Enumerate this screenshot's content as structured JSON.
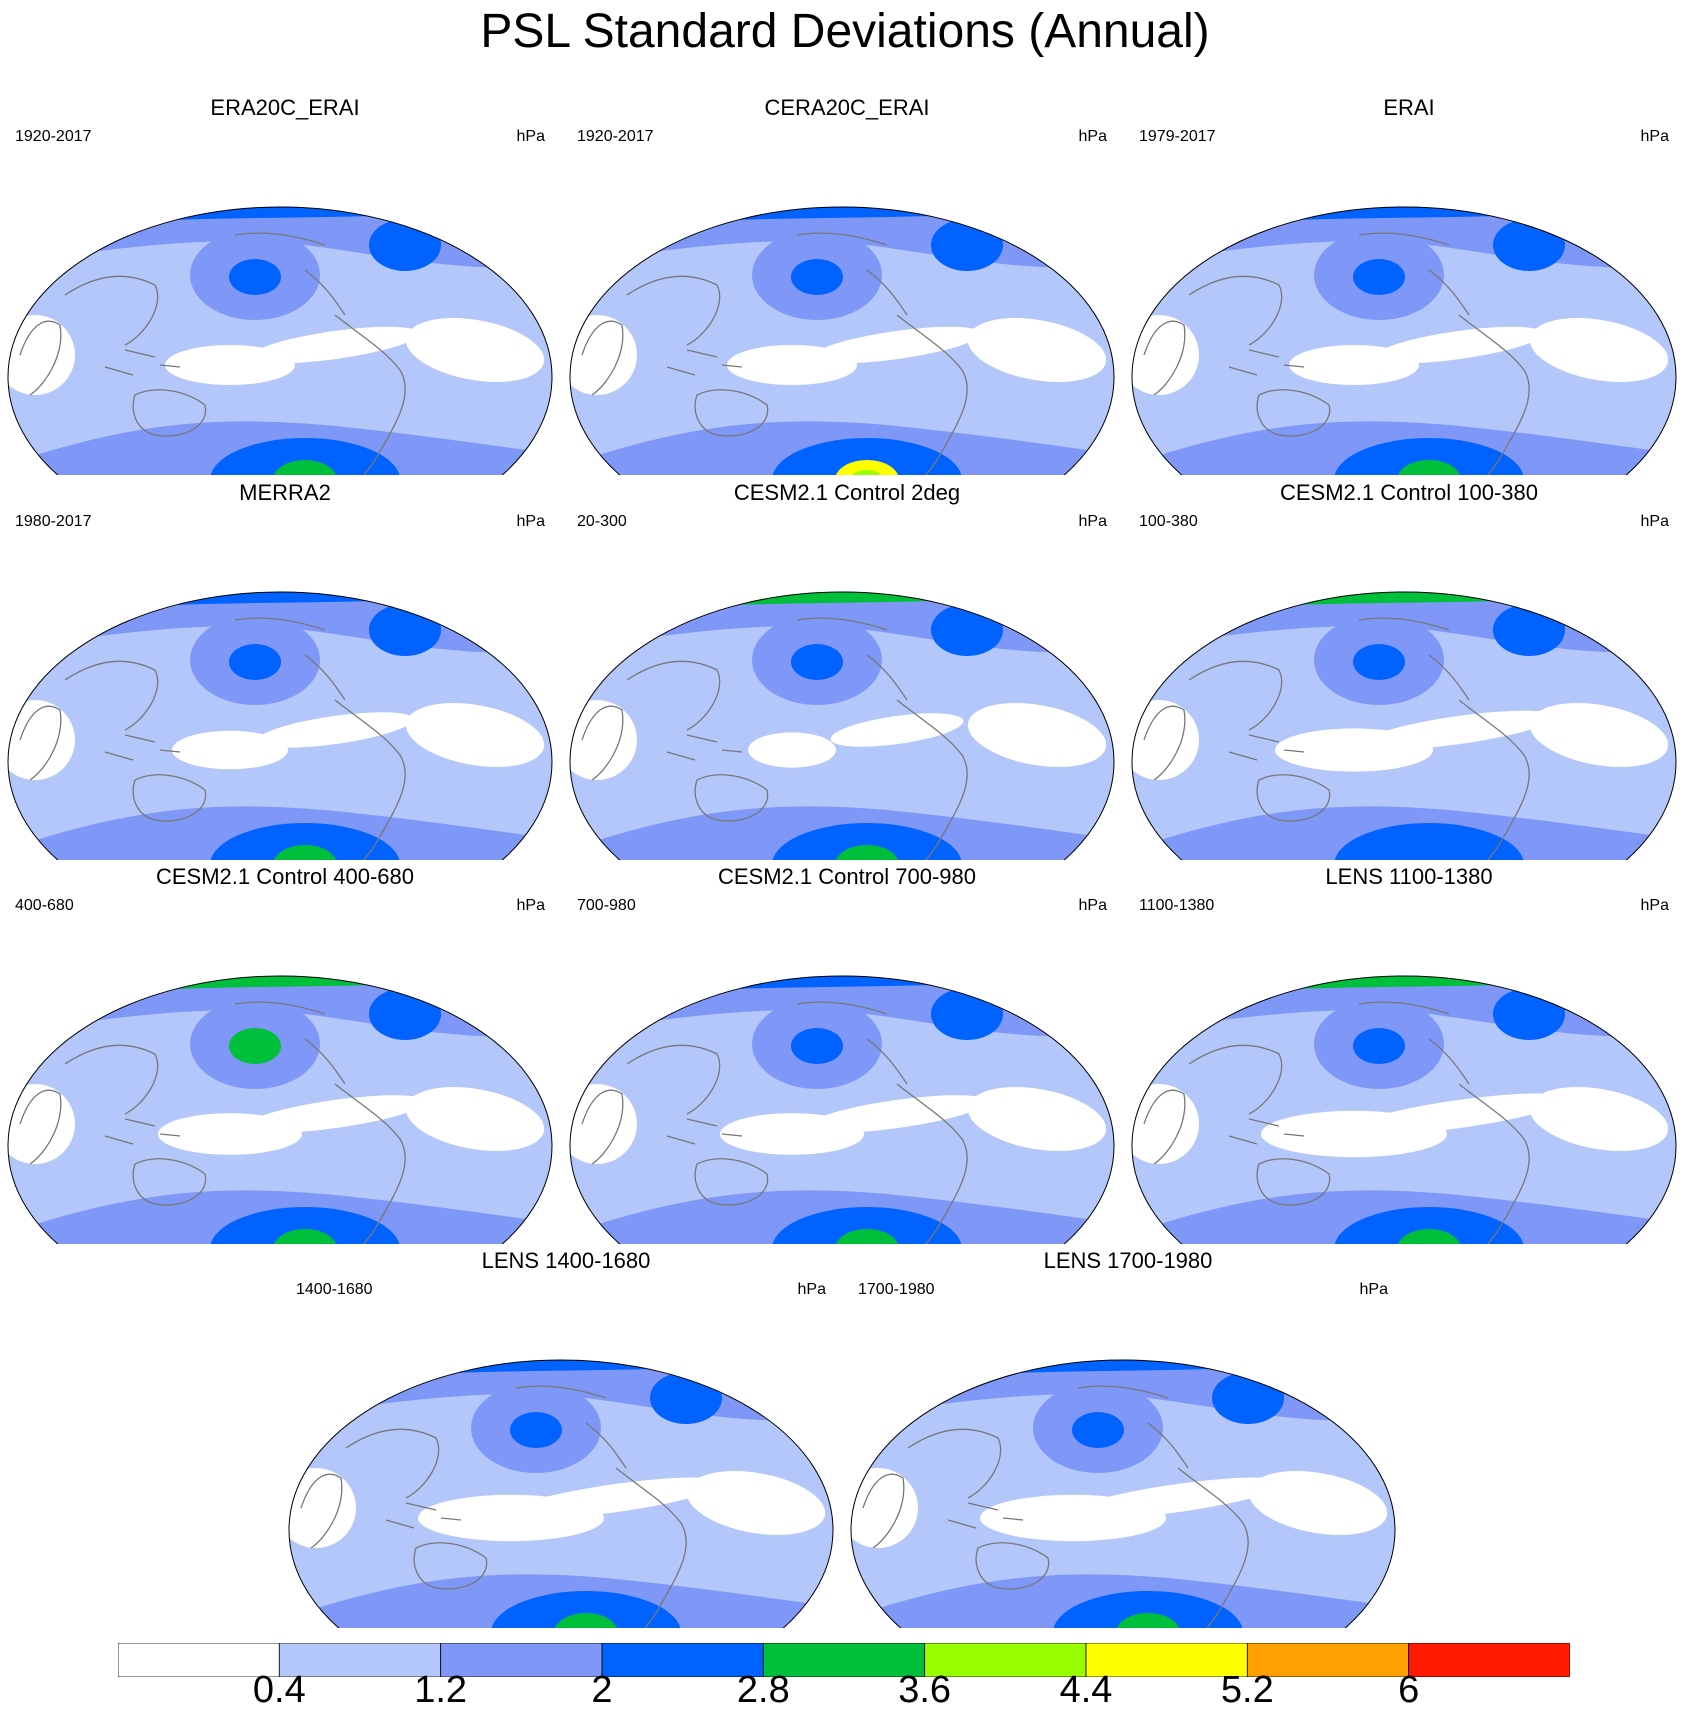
{
  "title": "PSL Standard Deviations (Annual)",
  "colors": {
    "levels": [
      "#ffffff",
      "#b4c7fa",
      "#7f97f7",
      "#0062ff",
      "#00bf3a",
      "#99ff00",
      "#ffff00",
      "#ffa000",
      "#ff1a00"
    ],
    "coastline": "#777777",
    "border": "#000000"
  },
  "panels": [
    {
      "title": "ERA20C_ERAI",
      "period": "1920-2017",
      "units": "hPa",
      "max_level": 4,
      "north_pacific": 3,
      "south_pacific": 4,
      "south_core": 4,
      "arctic": 3,
      "tropic_calm": 0.5
    },
    {
      "title": "CERA20C_ERAI",
      "period": "1920-2017",
      "units": "hPa",
      "max_level": 6,
      "north_pacific": 3,
      "south_pacific": 4,
      "south_core": 6,
      "arctic": 3,
      "tropic_calm": 0.5
    },
    {
      "title": "ERAI",
      "period": "1979-2017",
      "units": "hPa",
      "max_level": 4,
      "north_pacific": 3,
      "south_pacific": 4,
      "south_core": 4,
      "arctic": 3,
      "tropic_calm": 0.5
    },
    {
      "title": "MERRA2",
      "period": "1980-2017",
      "units": "hPa",
      "max_level": 4,
      "north_pacific": 3,
      "south_pacific": 4,
      "south_core": 4,
      "arctic": 3,
      "tropic_calm": 0.4
    },
    {
      "title": "CESM2.1 Control 2deg",
      "period": "20-300",
      "units": "hPa",
      "max_level": 4,
      "north_pacific": 3,
      "south_pacific": 4,
      "south_core": 4,
      "arctic": 4,
      "tropic_calm": 0.2
    },
    {
      "title": "CESM2.1 Control 100-380",
      "period": "100-380",
      "units": "hPa",
      "max_level": 4,
      "north_pacific": 3,
      "south_pacific": 3,
      "south_core": 3,
      "arctic": 4,
      "tropic_calm": 0.7
    },
    {
      "title": "CESM2.1 Control 400-680",
      "period": "400-680",
      "units": "hPa",
      "max_level": 4,
      "north_pacific": 4,
      "south_pacific": 4,
      "south_core": 4,
      "arctic": 4,
      "tropic_calm": 0.6
    },
    {
      "title": "CESM2.1 Control 700-980",
      "period": "700-980",
      "units": "hPa",
      "max_level": 4,
      "north_pacific": 3,
      "south_pacific": 4,
      "south_core": 4,
      "arctic": 3,
      "tropic_calm": 0.6
    },
    {
      "title": "LENS 1100-1380",
      "period": "1100-1380",
      "units": "hPa",
      "max_level": 4,
      "north_pacific": 3,
      "south_pacific": 4,
      "south_core": 4,
      "arctic": 4,
      "tropic_calm": 0.9
    },
    {
      "title": "LENS 1400-1680",
      "period": "1400-1680",
      "units": "hPa",
      "max_level": 4,
      "north_pacific": 3,
      "south_pacific": 4,
      "south_core": 4,
      "arctic": 3,
      "tropic_calm": 0.9
    },
    {
      "title": "LENS 1700-1980",
      "period": "1700-1980",
      "units": "hPa",
      "max_level": 4,
      "north_pacific": 3,
      "south_pacific": 4,
      "south_core": 4,
      "arctic": 3,
      "tropic_calm": 0.9
    }
  ],
  "colorbar": {
    "labels": [
      "0.4",
      "1.2",
      "2",
      "2.8",
      "3.6",
      "4.4",
      "5.2",
      "6"
    ]
  }
}
